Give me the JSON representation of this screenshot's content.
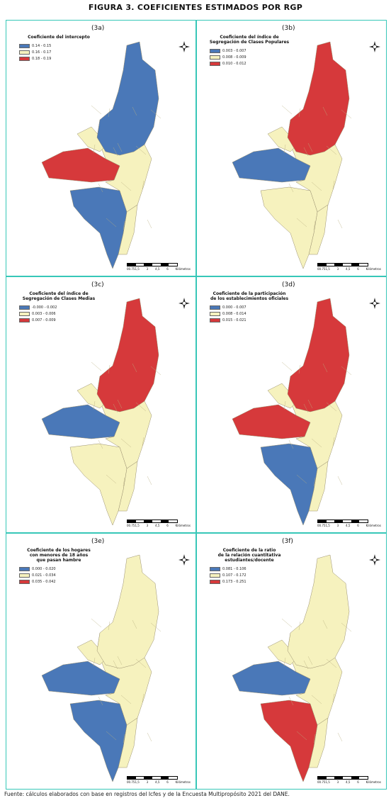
{
  "figure_title": "FIGURA 3. COEFICIENTES ESTIMADOS POR RGP",
  "source": "Fuente: cálculos elaborados con base en registros del Icfes y de la Encuesta Multipropósito 2021 del DANE.",
  "colors": {
    "low": "#4a78b8",
    "mid": "#f6f2be",
    "high": "#d6393b",
    "border": "#37c7b8"
  },
  "scale_ticks": [
    "00.751,5",
    "3",
    "4,5",
    "6"
  ],
  "scale_unit": "Kilómetros",
  "compass_icon": "north-arrow-icon",
  "panels": [
    {
      "id": "3a",
      "label": "(3a)",
      "title": [
        "Coeficiente del intercepto"
      ],
      "legend": [
        "0.14 - 0.15",
        "0.16 - 0.17",
        "0.18 - 0.19"
      ],
      "zones": {
        "north": "low",
        "west": "high",
        "south": "low",
        "rest": "mid"
      }
    },
    {
      "id": "3b",
      "label": "(3b)",
      "title": [
        "Coeficiente del índice de",
        "Segregación de Clases Populares"
      ],
      "legend": [
        "0.003 - 0.007",
        "0.008 - 0.009",
        "0.010 - 0.012"
      ],
      "zones": {
        "north": "high",
        "west": "low",
        "south": "mid",
        "rest": "mid"
      }
    },
    {
      "id": "3c",
      "label": "(3c)",
      "title": [
        "Coeficiente del índice de",
        "Segregación de Clases Medias"
      ],
      "legend": [
        "-0.000 - 0.002",
        "0.003 - 0.006",
        "0.007 - 0.009"
      ],
      "zones": {
        "north": "high",
        "west": "low",
        "south": "mid",
        "rest": "mid"
      }
    },
    {
      "id": "3d",
      "label": "(3d)",
      "title": [
        "Coeficiente de la participación",
        "de los establecimientos oficiales"
      ],
      "legend": [
        "0.000 - 0.007",
        "0.008 - 0.014",
        "0.015 - 0.021"
      ],
      "zones": {
        "north": "high",
        "west": "high",
        "south": "low",
        "rest": "mid"
      }
    },
    {
      "id": "3e",
      "label": "(3e)",
      "title": [
        "Coeficiente de los hogares",
        "con menores de 18 años",
        "que pasan hambre"
      ],
      "legend": [
        "0.000 - 0.020",
        "0.021 - 0.034",
        "0.035 - 0.042"
      ],
      "zones": {
        "north": "mid",
        "west": "low",
        "south": "low",
        "rest": "mid"
      }
    },
    {
      "id": "3f",
      "label": "(3f)",
      "title": [
        "Coeficiente de la ratio",
        "de la relación cuantitativa",
        "estudiantes/docente"
      ],
      "legend": [
        "0.081 - 0.106",
        "0.107 - 0.172",
        "0.173 - 0.251"
      ],
      "zones": {
        "north": "mid",
        "west": "low",
        "south": "high",
        "rest": "mid"
      }
    }
  ]
}
